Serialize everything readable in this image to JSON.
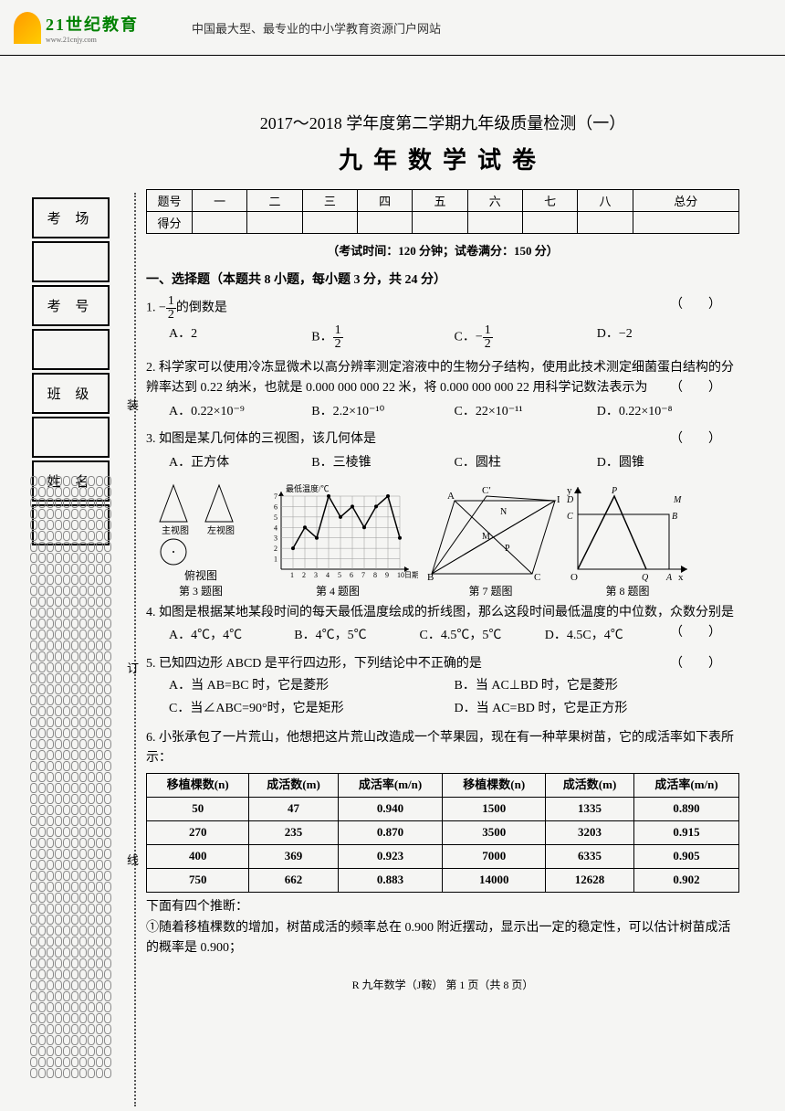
{
  "header": {
    "logo_cn": "21世纪教育",
    "logo_en": "www.21cnjy.com",
    "subtitle": "中国最大型、最专业的中小学教育资源门户网站"
  },
  "title": {
    "main": "2017～2018 学年度第二学期九年级质量检测（一）",
    "sub": "九年数学试卷"
  },
  "side_labels": [
    "考 场",
    "",
    "考 号",
    "",
    "班 级",
    "",
    "姓 名",
    ""
  ],
  "dot_chars": [
    "装",
    "订",
    "线"
  ],
  "score_header": [
    "题号",
    "一",
    "二",
    "三",
    "四",
    "五",
    "六",
    "七",
    "八",
    "总分"
  ],
  "score_row": "得分",
  "exam_info": "（考试时间：120 分钟；试卷满分：150 分）",
  "section1_title": "一、选择题（本题共 8 小题，每小题 3 分，共 24 分）",
  "q1": {
    "num": "1.",
    "text_pre": "−",
    "text_post": "的倒数是",
    "opts": [
      "A．2",
      "B．",
      "C．−",
      "D．−2"
    ]
  },
  "q2": {
    "num": "2.",
    "text": "科学家可以使用冷冻显微术以高分辨率测定溶液中的生物分子结构，使用此技术测定细菌蛋白结构的分辨率达到 0.22 纳米，也就是 0.000 000 000 22 米，将 0.000 000 000 22 用科学记数法表示为",
    "opts": [
      "A．0.22×10⁻⁹",
      "B．2.2×10⁻¹⁰",
      "C．22×10⁻¹¹",
      "D．0.22×10⁻⁸"
    ]
  },
  "q3": {
    "num": "3.",
    "text": "如图是某几何体的三视图，该几何体是",
    "opts": [
      "A．正方体",
      "B．三棱锥",
      "C．圆柱",
      "D．圆锥"
    ]
  },
  "figures": [
    "第 3 题图",
    "第 4 题图",
    "第 7 题图",
    "第 8 题图"
  ],
  "fig3_labels": [
    "主视图",
    "左视图",
    "俯视图"
  ],
  "fig4_ylabel": "最低温度/℃",
  "fig4_xlabel": "日期",
  "fig4_data": [
    2,
    4,
    3,
    7,
    5,
    6,
    4,
    6,
    7,
    3
  ],
  "q4": {
    "num": "4.",
    "text": "如图是根据某地某段时间的每天最低温度绘成的折线图，那么这段时间最低温度的中位数，众数分别是",
    "opts": [
      "A．4℃，4℃",
      "B．4℃，5℃",
      "C．4.5℃，5℃",
      "D．4.5C，4℃"
    ]
  },
  "q5": {
    "num": "5.",
    "text": "已知四边形 ABCD 是平行四边形，下列结论中不正确的是",
    "opts": [
      "A．当 AB=BC 时，它是菱形",
      "B．当 AC⊥BD 时，它是菱形",
      "C．当∠ABC=90°时，它是矩形",
      "D．当 AC=BD 时，它是正方形"
    ]
  },
  "q6": {
    "num": "6.",
    "text": "小张承包了一片荒山，他想把这片荒山改造成一个苹果园，现在有一种苹果树苗，它的成活率如下表所示：",
    "table_header": [
      "移植棵数(n)",
      "成活数(m)",
      "成活率(m/n)",
      "移植棵数(n)",
      "成活数(m)",
      "成活率(m/n)"
    ],
    "table_rows": [
      [
        "50",
        "47",
        "0.940",
        "1500",
        "1335",
        "0.890"
      ],
      [
        "270",
        "235",
        "0.870",
        "3500",
        "3203",
        "0.915"
      ],
      [
        "400",
        "369",
        "0.923",
        "7000",
        "6335",
        "0.905"
      ],
      [
        "750",
        "662",
        "0.883",
        "14000",
        "12628",
        "0.902"
      ]
    ],
    "after": "下面有四个推断：",
    "item1": "①随着移植棵数的增加，树苗成活的频率总在 0.900 附近摆动，显示出一定的稳定性，可以估计树苗成活的概率是 0.900；"
  },
  "footer": "R 九年数学（J鞍）  第 1 页（共 8 页）"
}
